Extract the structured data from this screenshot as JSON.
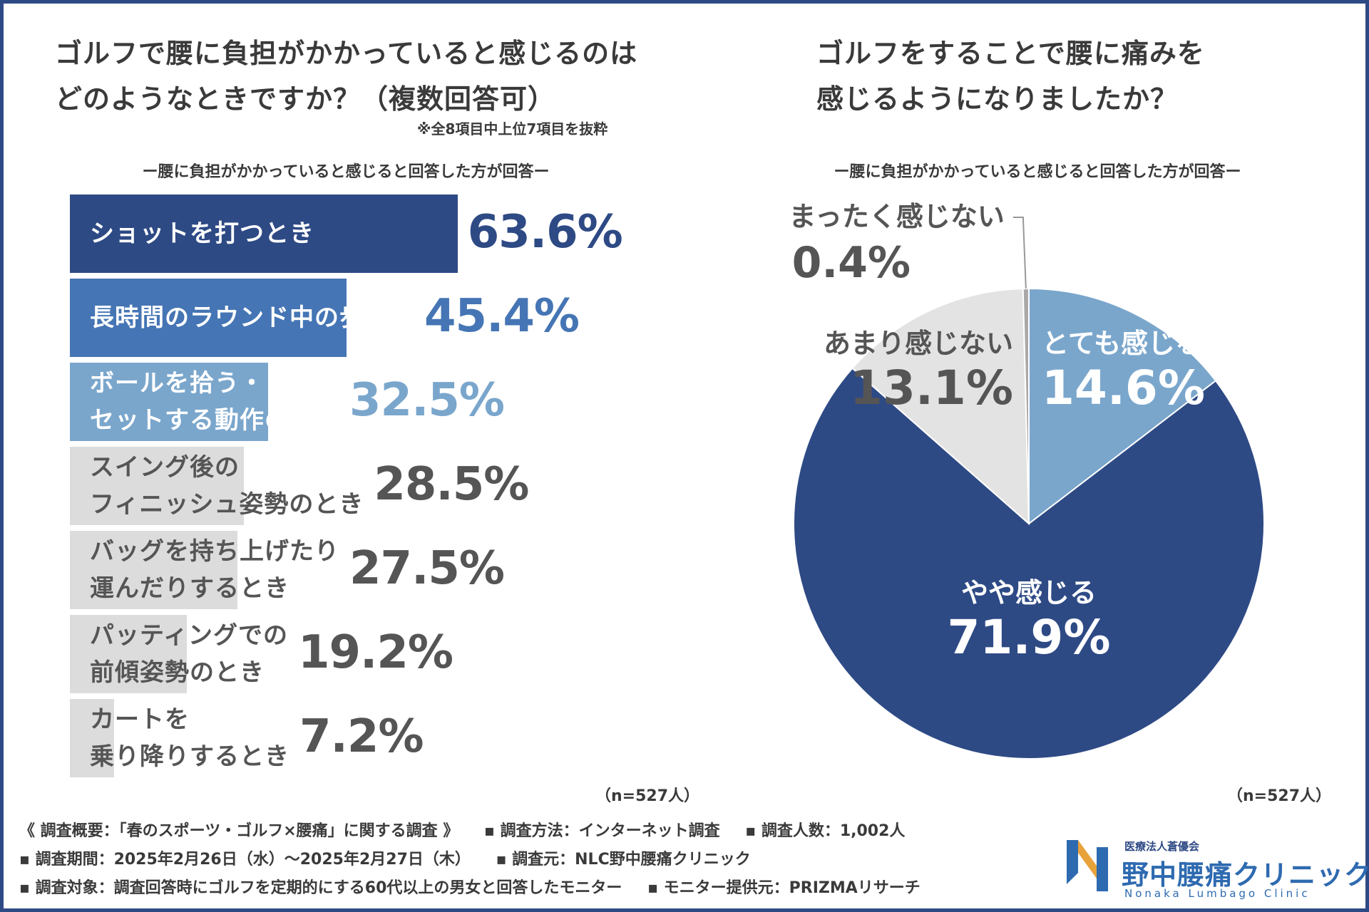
{
  "left_panel": {
    "title_lines": [
      "ゴルフで腰に負担がかかっていると感じるのは",
      "どのようなときですか？（複数回答可）"
    ],
    "note": "※全8項目中上位7項目を抜粋",
    "subtitle": "ー腰に負担がかかっていると感じると回答した方が回答ー",
    "n": "（n=527人）"
  },
  "right_panel": {
    "title_lines": [
      "ゴルフをすることで腰に痛みを",
      "感じるようになりましたか？"
    ],
    "subtitle": "ー腰に負担がかかっていると感じると回答した方が回答ー",
    "n": "（n=527人）"
  },
  "chart_data": [
    {
      "type": "bar",
      "orientation": "horizontal",
      "categories": [
        [
          "ショットを打つとき"
        ],
        [
          "長時間のラウンド中の歩行時"
        ],
        [
          "ボールを拾う・",
          "セットする動作のとき"
        ],
        [
          "スイング後の",
          "フィニッシュ姿勢のとき"
        ],
        [
          "バッグを持ち上げたり",
          "運んだりするとき"
        ],
        [
          "パッティングでの",
          "前傾姿勢のとき"
        ],
        [
          "カートを",
          "乗り降りするとき"
        ]
      ],
      "values": [
        63.6,
        45.4,
        32.5,
        28.5,
        27.5,
        19.2,
        7.2
      ],
      "value_labels": [
        "63.6%",
        "45.4%",
        "32.5%",
        "28.5%",
        "27.5%",
        "19.2%",
        "7.2%"
      ],
      "bar_colors": [
        "#2e4a85",
        "#4575b4",
        "#7aa6cc",
        "#dcdcdc",
        "#dcdcdc",
        "#dcdcdc",
        "#dcdcdc"
      ],
      "label_colors": [
        "#ffffff",
        "#ffffff",
        "#ffffff",
        "#555555",
        "#555555",
        "#555555",
        "#555555"
      ],
      "value_colors": [
        "#2e4a85",
        "#4575b4",
        "#7aa6cc",
        "#555555",
        "#555555",
        "#555555",
        "#555555"
      ],
      "xlim": [
        0,
        100
      ],
      "title": "ゴルフで腰に負担がかかっていると感じるのはどのようなときですか？（複数回答可）"
    },
    {
      "type": "pie",
      "title": "ゴルフをすることで腰に痛みを感じるようになりましたか？",
      "slices": [
        {
          "label": "とても感じる",
          "value": 14.6,
          "value_label": "14.6%",
          "color": "#7aa6cc",
          "text_color": "#ffffff"
        },
        {
          "label": "やや感じる",
          "value": 71.9,
          "value_label": "71.9%",
          "color": "#2e4a85",
          "text_color": "#ffffff"
        },
        {
          "label": "あまり感じない",
          "value": 13.1,
          "value_label": "13.1%",
          "color": "#e3e3e3",
          "text_color": "#555555"
        },
        {
          "label": "まったく感じない",
          "value": 0.4,
          "value_label": "0.4%",
          "color": "#a9a9a9",
          "text_color": "#555555"
        }
      ]
    }
  ],
  "footer": {
    "row1": [
      "《 調査概要：「春のスポーツ・ゴルフ×腰痛」に関する調査 》",
      "▪ 調査方法：インターネット調査",
      "▪ 調査人数：1,002人"
    ],
    "row2": [
      "▪ 調査期間：2025年2月26日（水）〜2025年2月27日（木）",
      "▪ 調査元：NLC野中腰痛クリニック"
    ],
    "row3": [
      "▪ 調査対象：調査回答時にゴルフを定期的にする60代以上の男女と回答したモニター",
      "▪ モニター提供元：PRIZMAリサーチ"
    ]
  },
  "logo": {
    "small": "医療法人蒼優会",
    "name": "野中腰痛クリニック",
    "en": "Nonaka Lumbago Clinic"
  }
}
